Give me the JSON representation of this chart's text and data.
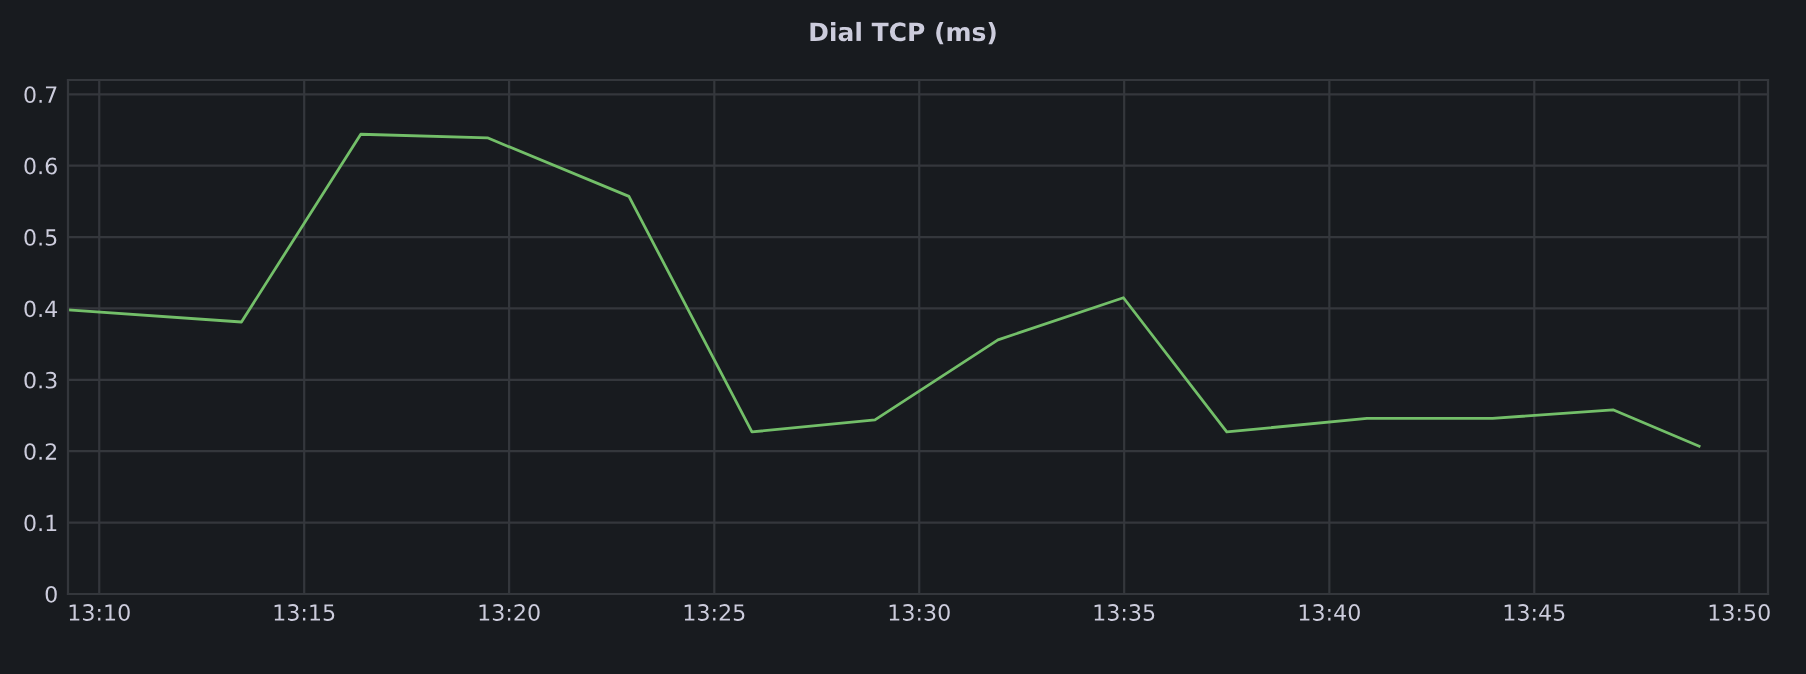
{
  "chart_data": {
    "type": "line",
    "title": "Dial TCP (ms)",
    "x": [
      13.154,
      13.2245,
      13.273,
      13.3245,
      13.382,
      13.432,
      13.482,
      13.532,
      13.583,
      13.625,
      13.682,
      13.733,
      13.782,
      13.817
    ],
    "series": [
      {
        "color": "#73bf69",
        "values": [
          0.398,
          0.381,
          0.644,
          0.639,
          0.557,
          0.227,
          0.244,
          0.356,
          0.415,
          0.227,
          0.246,
          0.246,
          0.258,
          0.207
        ]
      }
    ],
    "xlim": [
      13.154,
      13.845
    ],
    "xticks": [
      {
        "value": 13.1667,
        "label": "13:10"
      },
      {
        "value": 13.25,
        "label": "13:15"
      },
      {
        "value": 13.3333,
        "label": "13:20"
      },
      {
        "value": 13.4167,
        "label": "13:25"
      },
      {
        "value": 13.5,
        "label": "13:30"
      },
      {
        "value": 13.5833,
        "label": "13:35"
      },
      {
        "value": 13.6667,
        "label": "13:40"
      },
      {
        "value": 13.75,
        "label": "13:45"
      },
      {
        "value": 13.8333,
        "label": "13:50"
      }
    ],
    "ylim": [
      0,
      0.72
    ],
    "yticks": [
      0,
      0.1,
      0.2,
      0.3,
      0.4,
      0.5,
      0.6,
      0.7
    ],
    "grid": true,
    "marker": "none",
    "line_style": "solid"
  }
}
